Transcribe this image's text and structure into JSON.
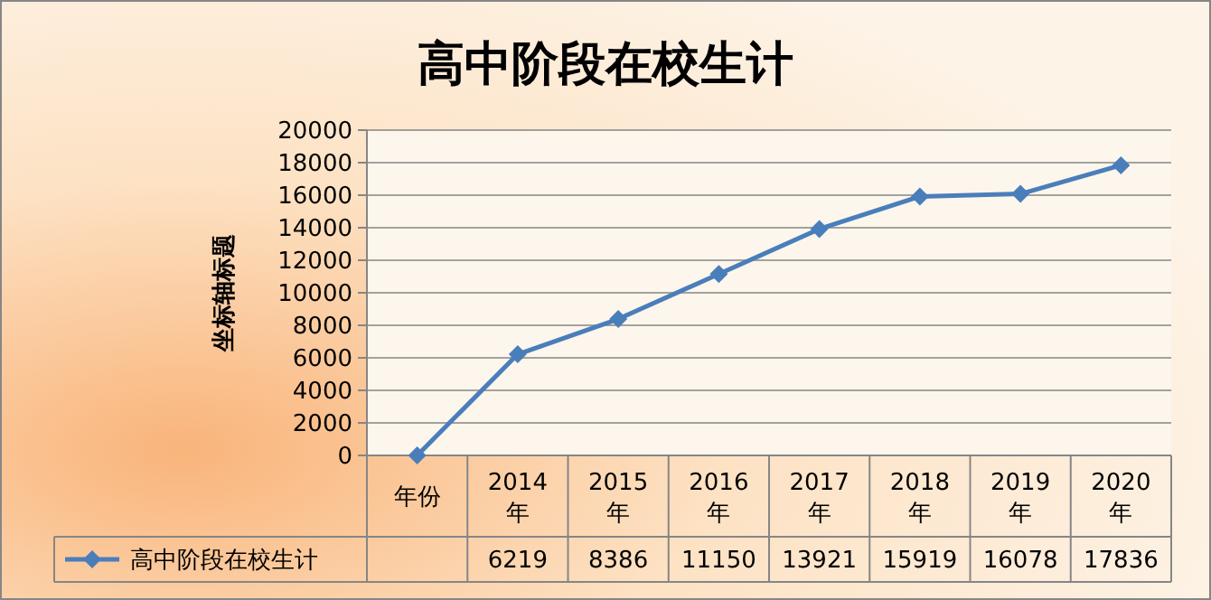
{
  "chart_data": {
    "type": "line",
    "title": "高中阶段在校生计",
    "ylabel": "坐标轴标题",
    "categories": [
      "年份",
      "2014年",
      "2015年",
      "2016年",
      "2017年",
      "2018年",
      "2019年",
      "2020年"
    ],
    "series": [
      {
        "name": "高中阶段在校生计",
        "color": "#4a7ebb",
        "values": [
          0,
          6219,
          8386,
          11150,
          13921,
          15919,
          16078,
          17836
        ],
        "value_labels": [
          null,
          "6219",
          "8386",
          "11150",
          "13921",
          "15919",
          "16078",
          "17836"
        ]
      }
    ],
    "ylim": [
      0,
      20000
    ],
    "yticks": [
      0,
      2000,
      4000,
      6000,
      8000,
      10000,
      12000,
      14000,
      16000,
      18000,
      20000
    ],
    "grid": "y",
    "legend": "bottom",
    "marker": "diamond",
    "line_style": "solid"
  }
}
